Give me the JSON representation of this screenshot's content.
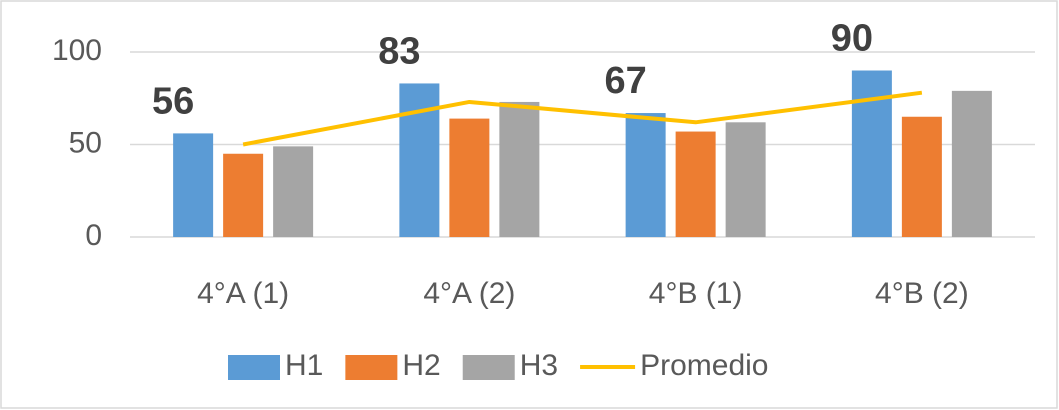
{
  "chart_data": {
    "type": "bar",
    "categories": [
      "4°A (1)",
      "4°A (2)",
      "4°B (1)",
      "4°B (2)"
    ],
    "series": [
      {
        "name": "H1",
        "color": "#5b9bd5",
        "values": [
          56,
          83,
          67,
          90
        ],
        "show_labels": true
      },
      {
        "name": "H2",
        "color": "#ed7d31",
        "values": [
          45,
          64,
          57,
          65
        ]
      },
      {
        "name": "H3",
        "color": "#a5a5a5",
        "values": [
          49,
          73,
          62,
          79
        ]
      },
      {
        "name": "Promedio",
        "color": "#ffc000",
        "type": "line",
        "values": [
          50,
          73,
          62,
          78
        ]
      }
    ],
    "ylim": [
      0,
      100
    ],
    "yticks": [
      0,
      50,
      100
    ],
    "grid": true,
    "legend": "bottom"
  }
}
